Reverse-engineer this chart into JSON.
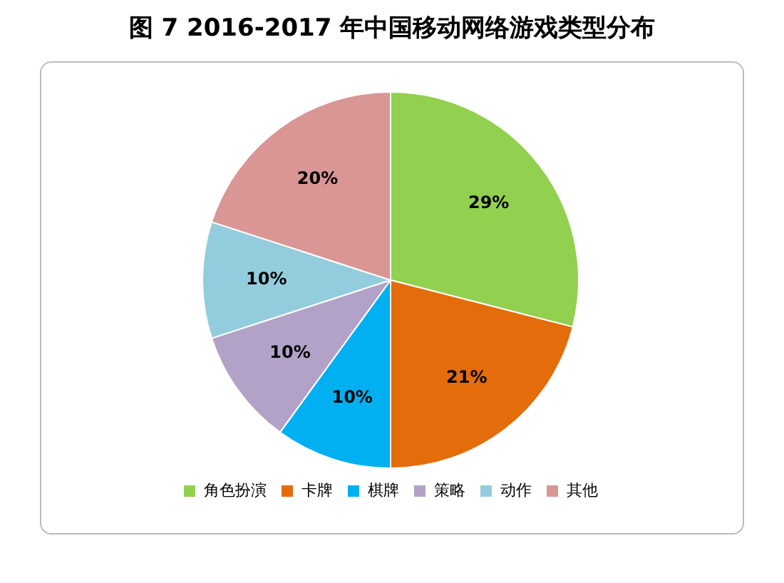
{
  "chart_data": {
    "type": "pie",
    "title": "图 7 2016-2017 年中国移动网络游戏类型分布",
    "categories": [
      "角色扮演",
      "卡牌",
      "棋牌",
      "策略",
      "动作",
      "其他"
    ],
    "values": [
      29,
      21,
      10,
      10,
      10,
      20
    ],
    "value_labels": [
      "29%",
      "21%",
      "10%",
      "10%",
      "10%",
      "20%"
    ],
    "colors": [
      "#92d050",
      "#e46c0a",
      "#00b0f0",
      "#b3a2c7",
      "#93cddd",
      "#d99694"
    ],
    "legend": "bottom"
  }
}
